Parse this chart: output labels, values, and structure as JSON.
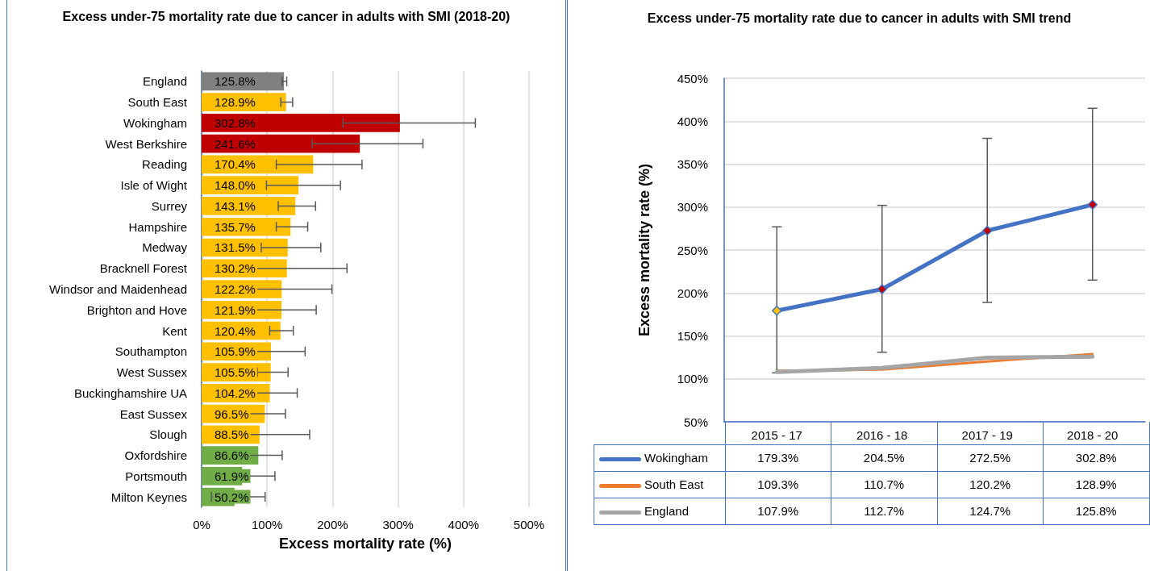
{
  "chart_data": [
    {
      "type": "bar",
      "orientation": "horizontal",
      "title": "Excess under-75 mortality rate due to cancer in adults with SMI (2018-20)",
      "xlabel": "Excess mortality rate (%)",
      "categories": [
        "England",
        "South East",
        "Wokingham",
        "West Berkshire",
        "Reading",
        "Isle of Wight",
        "Surrey",
        "Hampshire",
        "Medway",
        "Bracknell Forest",
        "Windsor and Maidenhead",
        "Brighton and Hove",
        "Kent",
        "Southampton",
        "West Sussex",
        "Buckinghamshire UA",
        "East Sussex",
        "Slough",
        "Oxfordshire",
        "Portsmouth",
        "Milton Keynes"
      ],
      "values": [
        125.8,
        128.9,
        302.8,
        241.6,
        170.4,
        148.0,
        143.1,
        135.7,
        131.5,
        130.2,
        122.2,
        121.9,
        120.4,
        105.9,
        105.5,
        104.2,
        96.5,
        88.5,
        86.6,
        61.9,
        50.2
      ],
      "value_labels": [
        "125.8%",
        "128.9%",
        "302.8%",
        "241.6%",
        "170.4%",
        "148.0%",
        "143.1%",
        "135.7%",
        "131.5%",
        "130.2%",
        "122.2%",
        "121.9%",
        "120.4%",
        "105.9%",
        "105.5%",
        "104.2%",
        "96.5%",
        "88.5%",
        "86.6%",
        "61.9%",
        "50.2%"
      ],
      "colors": [
        "#808080",
        "#ffc000",
        "#c00000",
        "#c00000",
        "#ffc000",
        "#ffc000",
        "#ffc000",
        "#ffc000",
        "#ffc000",
        "#ffc000",
        "#ffc000",
        "#ffc000",
        "#ffc000",
        "#ffc000",
        "#ffc000",
        "#ffc000",
        "#ffc000",
        "#ffc000",
        "#70ad47",
        "#70ad47",
        "#70ad47"
      ],
      "errors": [
        [
          123,
          130
        ],
        [
          121,
          139
        ],
        [
          216,
          418
        ],
        [
          169,
          338
        ],
        [
          114,
          245
        ],
        [
          99,
          212
        ],
        [
          117,
          174
        ],
        [
          114,
          162
        ],
        [
          91,
          182
        ],
        [
          67,
          222
        ],
        [
          67,
          199
        ],
        [
          81,
          175
        ],
        [
          104,
          140
        ],
        [
          65,
          158
        ],
        [
          85,
          132
        ],
        [
          71,
          146
        ],
        [
          71,
          128
        ],
        [
          35,
          165
        ],
        [
          71,
          123
        ],
        [
          24,
          112
        ],
        [
          15,
          97
        ]
      ],
      "xlim": [
        0,
        500
      ],
      "xticks": [
        {
          "value": 0,
          "label": "0%"
        },
        {
          "value": 100,
          "label": "100%"
        },
        {
          "value": 200,
          "label": "200%"
        },
        {
          "value": 300,
          "label": "300%"
        },
        {
          "value": 400,
          "label": "400%"
        },
        {
          "value": 500,
          "label": "500%"
        }
      ],
      "grid": "x"
    },
    {
      "type": "line",
      "title": "Excess under-75 mortality rate due to cancer in adults with SMI trend",
      "ylabel": "Excess mortality rate (%)",
      "categories": [
        "2015 - 17",
        "2016 - 18",
        "2017 - 19",
        "2018 - 20"
      ],
      "series": [
        {
          "name": "Wokingham",
          "color": "#4472c4",
          "values": [
            179.3,
            204.5,
            272.5,
            302.8
          ],
          "value_labels": [
            "179.3%",
            "204.5%",
            "272.5%",
            "302.8%"
          ],
          "marker": "diamond",
          "colors": [
            "#ffc000",
            "#c00000",
            "#c00000",
            "#c00000"
          ],
          "errors": [
            [
              107,
              277
            ],
            [
              131,
              302
            ],
            [
              189,
              380
            ],
            [
              215,
              415
            ]
          ]
        },
        {
          "name": "South East",
          "color": "#ed7d31",
          "values": [
            109.3,
            110.7,
            120.2,
            128.9
          ],
          "value_labels": [
            "109.3%",
            "110.7%",
            "120.2%",
            "128.9%"
          ]
        },
        {
          "name": "England",
          "color": "#a5a5a5",
          "values": [
            107.9,
            112.7,
            124.7,
            125.8
          ],
          "value_labels": [
            "107.9%",
            "112.7%",
            "124.7%",
            "125.8%"
          ]
        }
      ],
      "ylim": [
        50,
        450
      ],
      "yticks": [
        {
          "value": 50,
          "label": "50%"
        },
        {
          "value": 100,
          "label": "100%"
        },
        {
          "value": 150,
          "label": "150%"
        },
        {
          "value": 200,
          "label": "200%"
        },
        {
          "value": 250,
          "label": "250%"
        },
        {
          "value": 300,
          "label": "300%"
        },
        {
          "value": 350,
          "label": "350%"
        },
        {
          "value": 400,
          "label": "400%"
        },
        {
          "value": 450,
          "label": "450%"
        }
      ],
      "grid": "y",
      "legend": "bottom",
      "data_labels": true
    }
  ]
}
